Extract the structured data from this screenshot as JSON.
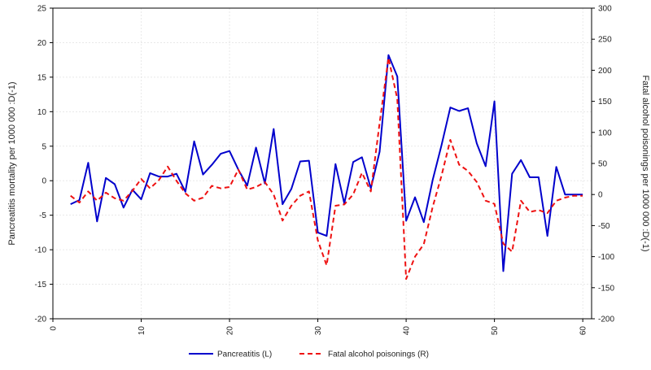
{
  "chart_data": {
    "type": "line",
    "title": "",
    "xlabel": "",
    "ylabel_left": "Pancreatitis mortality per 1000 000 :D(-1)",
    "ylabel_right": "Fatal alcohol poisonings per 1000 000 :D(-1)",
    "xlim": [
      0,
      61
    ],
    "ylim_left": [
      -20,
      25
    ],
    "ylim_right": [
      -200,
      300
    ],
    "xticks": [
      0,
      10,
      20,
      30,
      40,
      50,
      60
    ],
    "yticks_left": [
      -20,
      -15,
      -10,
      -5,
      0,
      5,
      10,
      15,
      20,
      25
    ],
    "yticks_right": [
      -200,
      -150,
      -100,
      -50,
      0,
      50,
      100,
      150,
      200,
      250,
      300
    ],
    "grid": true,
    "legend_position": "bottom-center",
    "series": [
      {
        "name": "Pancreatitis  (L)",
        "axis": "left",
        "color": "#0000cc",
        "style": "solid",
        "x": [
          2,
          3,
          4,
          5,
          6,
          7,
          8,
          9,
          10,
          11,
          12,
          13,
          14,
          15,
          16,
          17,
          18,
          19,
          20,
          21,
          22,
          23,
          24,
          25,
          26,
          27,
          28,
          29,
          30,
          31,
          32,
          33,
          34,
          35,
          36,
          37,
          38,
          39,
          40,
          41,
          42,
          43,
          44,
          45,
          46,
          47,
          48,
          49,
          50,
          51,
          52,
          53,
          54,
          55,
          56,
          57,
          58,
          59,
          60
        ],
        "values": [
          -3.4,
          -2.8,
          2.6,
          -5.9,
          0.4,
          -0.5,
          -3.9,
          -1.3,
          -2.7,
          1.1,
          0.6,
          0.6,
          1.0,
          -1.6,
          5.7,
          0.9,
          2.3,
          3.9,
          4.3,
          1.6,
          -0.7,
          4.8,
          -0.4,
          7.5,
          -3.4,
          -1.2,
          2.8,
          2.9,
          -7.5,
          -8.0,
          2.4,
          -3.3,
          2.7,
          3.4,
          -1.1,
          4.2,
          18.2,
          15.1,
          -5.8,
          -2.4,
          -6.0,
          0.1,
          5.1,
          10.6,
          10.1,
          10.5,
          5.4,
          2.1,
          11.5,
          -13.1,
          1.0,
          3.0,
          0.5,
          0.5,
          -8.0,
          2.0,
          -2.0,
          -2.0,
          -2.0
        ]
      },
      {
        "name": "Fatal alcohol poisonings (R)",
        "axis": "right",
        "color": "#ee1111",
        "style": "dashed",
        "x": [
          2,
          3,
          4,
          5,
          6,
          7,
          8,
          9,
          10,
          11,
          12,
          13,
          14,
          15,
          16,
          17,
          18,
          19,
          20,
          21,
          22,
          23,
          24,
          25,
          26,
          27,
          28,
          29,
          30,
          31,
          32,
          33,
          34,
          35,
          36,
          37,
          38,
          39,
          40,
          41,
          42,
          43,
          44,
          45,
          46,
          47,
          48,
          49,
          50,
          51,
          52,
          53,
          54,
          55,
          56,
          57,
          58,
          59,
          60
        ],
        "values": [
          -2,
          -13,
          5,
          -10,
          3,
          -6,
          -10,
          6,
          25,
          10,
          23,
          45,
          22,
          2,
          -10,
          -5,
          14,
          10,
          12,
          40,
          8,
          12,
          20,
          0,
          -42,
          -18,
          -2,
          5,
          -74,
          -114,
          -18,
          -16,
          0,
          35,
          5,
          115,
          220,
          154,
          -136,
          -100,
          -80,
          -20,
          30,
          88,
          48,
          38,
          20,
          -10,
          -15,
          -79,
          -92,
          -10,
          -28,
          -25,
          -30,
          -10,
          -5,
          -2,
          -2
        ]
      }
    ]
  }
}
